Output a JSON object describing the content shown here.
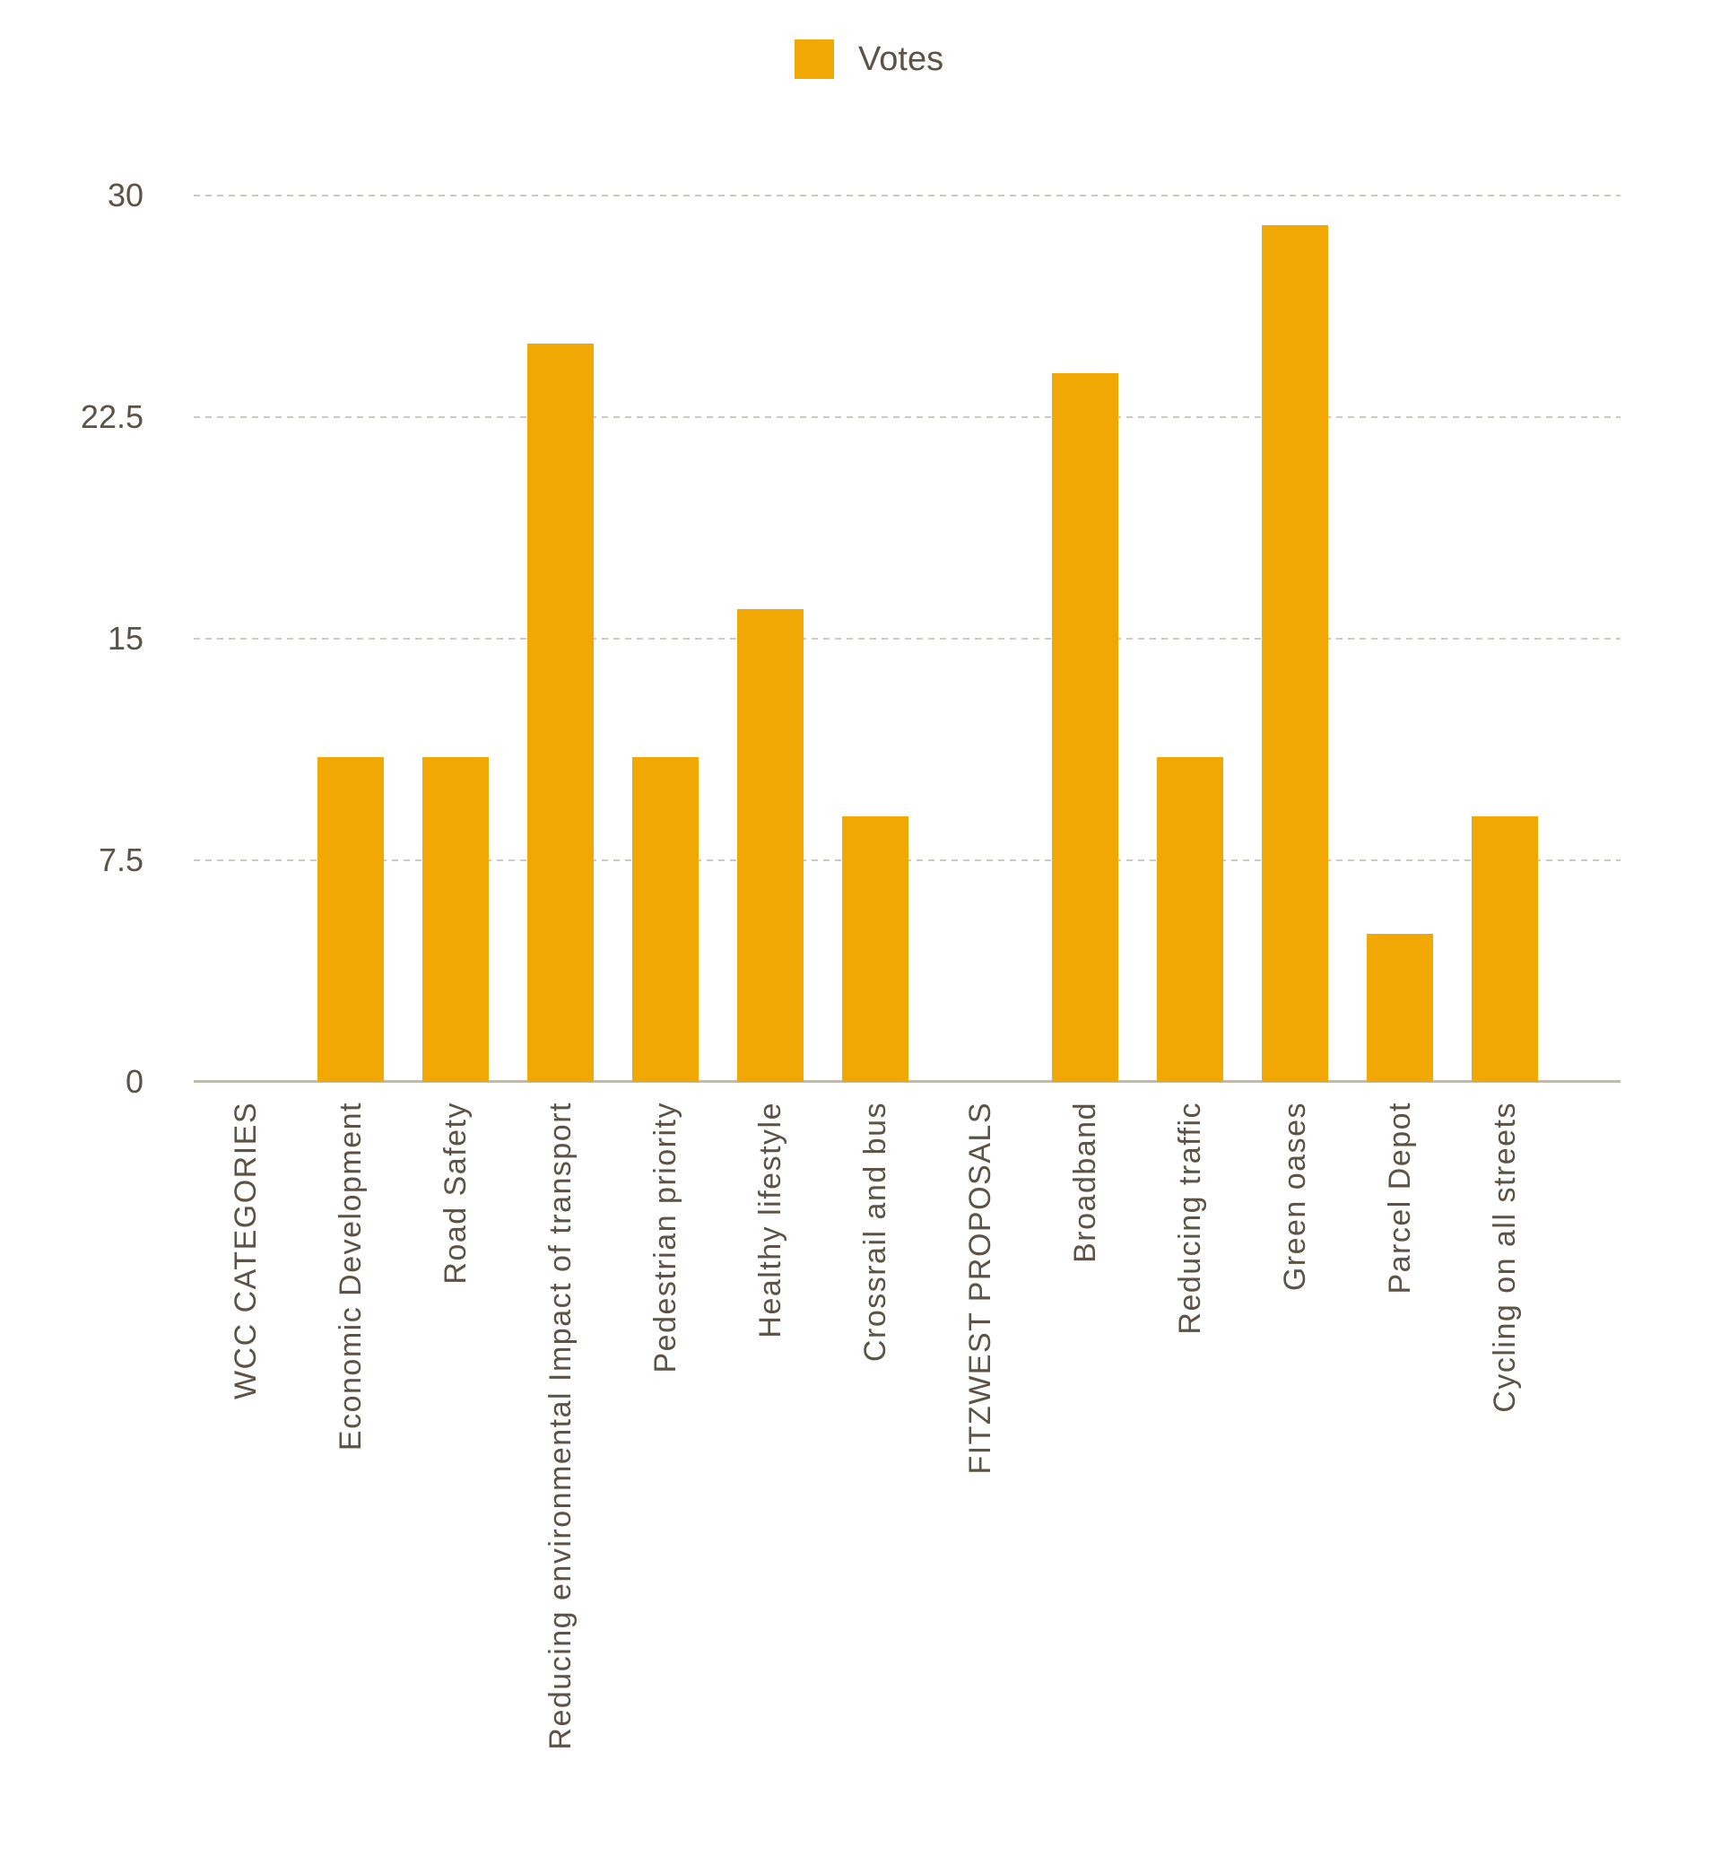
{
  "legend": {
    "label": "Votes"
  },
  "colors": {
    "bar": "#F1A804",
    "text": "#5C5245",
    "gridline": "#CDC9BF",
    "axis": "#C0BBAF",
    "background": "#FFFFFF"
  },
  "chart_data": {
    "type": "bar",
    "title": "",
    "series_name": "Votes",
    "legend_position": "top-center",
    "grid": "horizontal-dashed",
    "ylim": [
      0,
      30
    ],
    "yticks": [
      0,
      7.5,
      15,
      22.5,
      30
    ],
    "categories": [
      "WCC CATEGORIES",
      "Economic Development",
      "Road Safety",
      "Reducing environmental Impact of transport",
      "Pedestrian priority",
      "Healthy lifestyle",
      "Crossrail and bus",
      "FITZWEST PROPOSALS",
      "Broadband",
      "Reducing traffic",
      "Green oases",
      "Parcel Depot",
      "Cycling on all streets"
    ],
    "values": [
      0,
      11,
      11,
      25,
      11,
      16,
      9,
      0,
      24,
      11,
      29,
      5,
      9
    ]
  }
}
